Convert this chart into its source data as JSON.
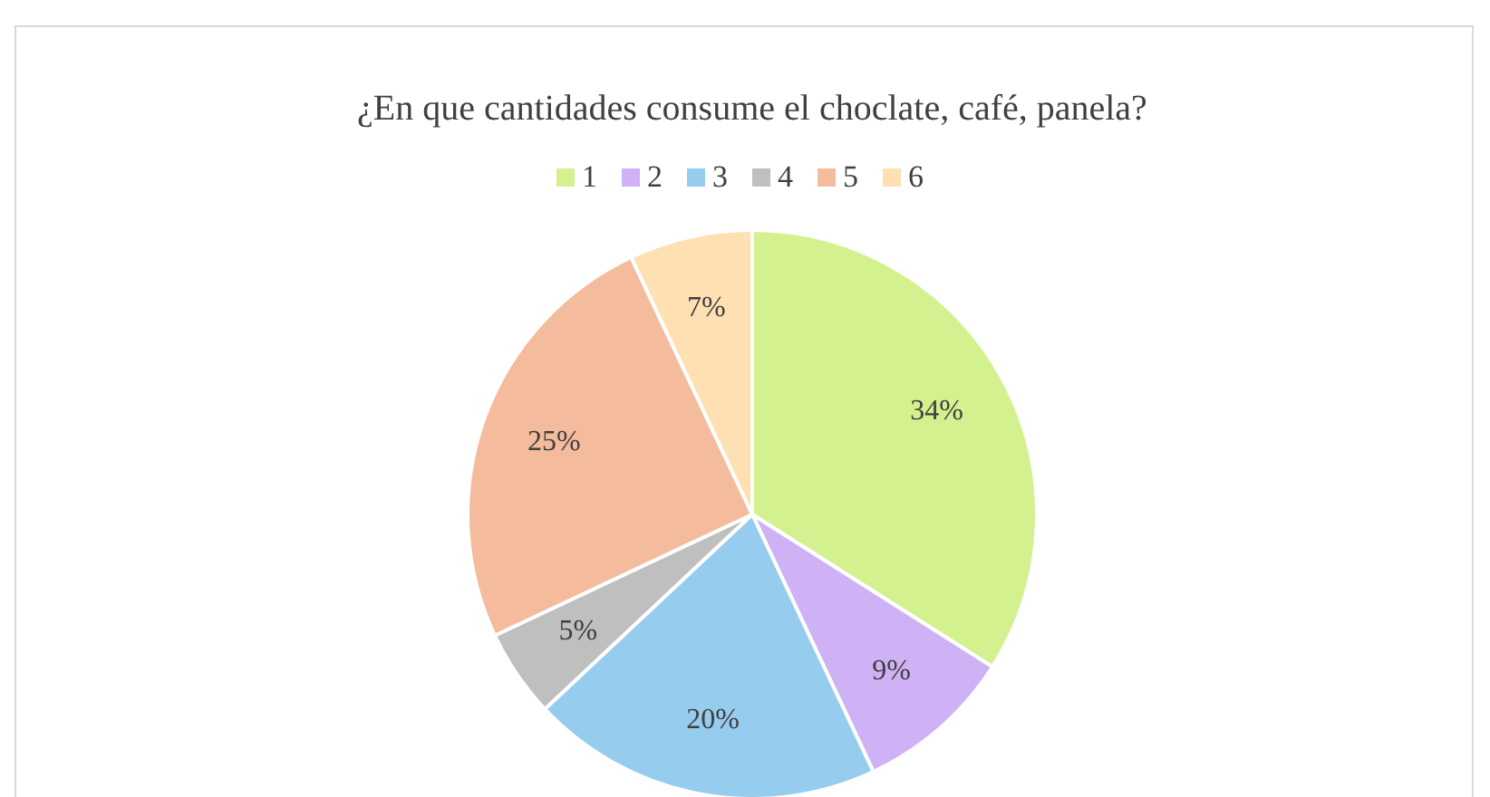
{
  "chart_data": {
    "type": "pie",
    "title": "¿En que cantidades consume el choclate, café, panela?",
    "categories": [
      "1",
      "2",
      "3",
      "4",
      "5",
      "6"
    ],
    "values": [
      34,
      9,
      20,
      5,
      25,
      7
    ],
    "colors": [
      "#d3f28f",
      "#cfb2f5",
      "#96ccee",
      "#bfbfbf",
      "#f4bb9c",
      "#ffe0b3"
    ],
    "value_labels": [
      "34%",
      "9%",
      "20%",
      "5%",
      "25%",
      "7%"
    ],
    "legend": "top"
  }
}
